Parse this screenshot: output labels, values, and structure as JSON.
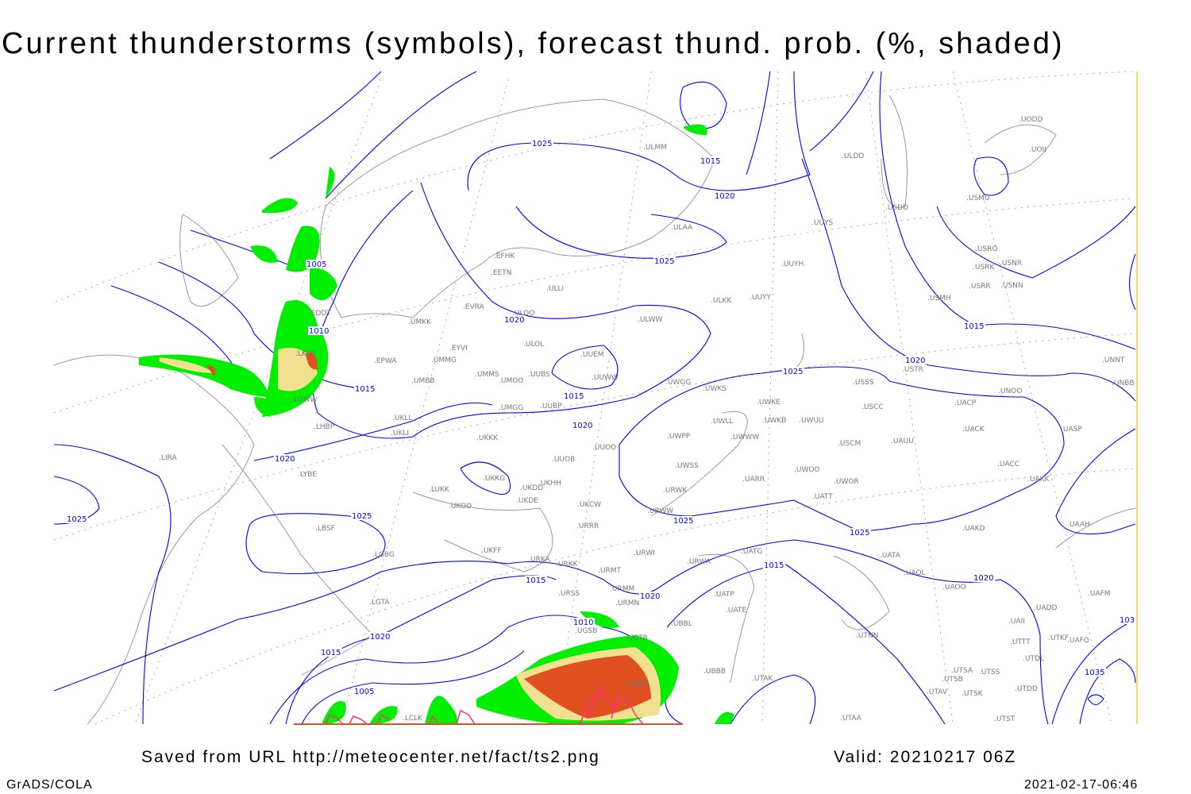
{
  "title": "Current thunderstorms (symbols), forecast thund. prob. (%, shaded)",
  "footer": {
    "saved_from": "Saved from URL http://meteocenter.net/fact/ts2.png",
    "valid": "Valid: 20210217 06Z",
    "software": "GrADS/COLA",
    "timestamp": "2021-02-17-06:46"
  },
  "colors": {
    "isobar": "#0000ff",
    "coastline": "#999999",
    "prob_low": "#00ee00",
    "prob_mid": "#f0e090",
    "prob_high": "#e05020",
    "thunderstorm_symbol": "#ff3377"
  },
  "isobar_labels": [
    "1025",
    "1015",
    "1020",
    "1025",
    "1005",
    "1010",
    "1020",
    "1015",
    "1015",
    "1020",
    "1025",
    "1020",
    "1015",
    "1020",
    "1025",
    "1025",
    "1025",
    "1025",
    "1015",
    "1020",
    "1015",
    "1020",
    "1010",
    "1020",
    "1015",
    "1005",
    "1035",
    "103"
  ],
  "stations": [
    "ULMM",
    "ULDD",
    "UODD",
    "UOII",
    "USMU",
    "USDD",
    "ULAA",
    "UUYS",
    "USRO",
    "USRK",
    "USNR",
    "USRR",
    "USNN",
    "USMH",
    "UUYH",
    "ULKK",
    "UUYY",
    "EFHK",
    "EETN",
    "ULLI",
    "EVRA",
    "ULOO",
    "ULWW",
    "UMKK",
    "EYVI",
    "ULOL",
    "UUEM",
    "UMMG",
    "EPWA",
    "UMMS",
    "UMOO",
    "UUBS",
    "UUWW",
    "UMBB",
    "UWGG",
    "UWKS",
    "UUBP",
    "UMGG",
    "UWKE",
    "UWKB",
    "UWUU",
    "USSS",
    "USTR",
    "UNOO",
    "UNNT",
    "UNBB",
    "USCC",
    "UACP",
    "UACK",
    "UASP",
    "UWLL",
    "UWWW",
    "USCM",
    "UAUU",
    "UWPP",
    "UKLL",
    "UKLI",
    "LHBP",
    "UKKK",
    "UUOO",
    "LIRA",
    "UUOB",
    "UWSS",
    "UARR",
    "UWOO",
    "UWOR",
    "UACC",
    "UAKK",
    "LYBE",
    "LUKK",
    "UKKG",
    "UKDD",
    "UKHH",
    "UKDE",
    "UKOO",
    "UKCW",
    "URWK",
    "UATT",
    "URWW",
    "LBSF",
    "URRR",
    "UAKD",
    "UAAH",
    "UKFF",
    "LGBG",
    "URWI",
    "UATG",
    "UATA",
    "URKA",
    "URKK",
    "URMT",
    "URWA",
    "UAOL",
    "UAOO",
    "URMM",
    "URSS",
    "UATP",
    "UATE",
    "URMN",
    "UAFM",
    "LGTA",
    "UADD",
    "UGSB",
    "UBBL",
    "UAII",
    "UTNN",
    "UGTB",
    "UTTT",
    "UTKF",
    "UAFO",
    "UTDL",
    "UBBB",
    "UTSA",
    "UTSS",
    "UTSB",
    "UTAK",
    "UBBN",
    "UTAV",
    "UTSK",
    "UTDD",
    "UTAA",
    "UTST",
    "LCLK",
    "LOWW",
    "EDDT",
    "LKPR"
  ]
}
